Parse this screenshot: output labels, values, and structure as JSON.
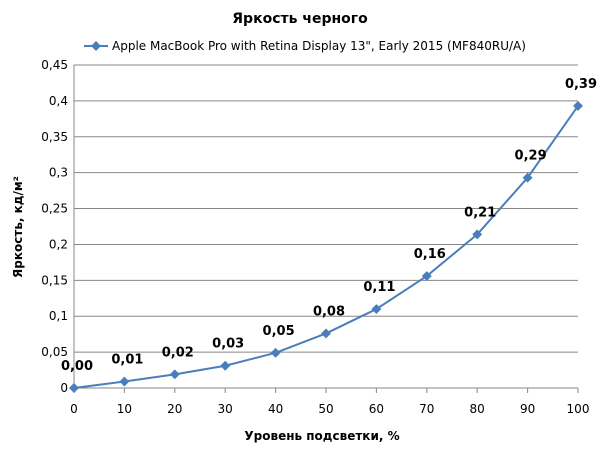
{
  "chart_data": {
    "type": "line",
    "title": "Яркость черного",
    "xlabel": "Уровень подсветки, %",
    "ylabel": "Яркость, кд/м²",
    "xlim": [
      0,
      100
    ],
    "ylim": [
      0,
      0.45
    ],
    "x_ticks": [
      "0",
      "10",
      "20",
      "30",
      "40",
      "50",
      "60",
      "70",
      "80",
      "90",
      "100"
    ],
    "y_ticks": [
      "0",
      "0,05",
      "0,1",
      "0,15",
      "0,2",
      "0,25",
      "0,3",
      "0,35",
      "0,4",
      "0,45"
    ],
    "grid": "horizontal",
    "legend_position": "top",
    "series": [
      {
        "name": "Apple MacBook Pro with Retina Display 13\", Early 2015 (MF840RU/A)",
        "color": "#4a7ebb",
        "x": [
          0,
          10,
          20,
          30,
          40,
          50,
          60,
          70,
          80,
          90,
          100
        ],
        "values": [
          0.0,
          0.009,
          0.019,
          0.031,
          0.049,
          0.076,
          0.11,
          0.156,
          0.214,
          0.293,
          0.393
        ],
        "labels": [
          "0,00",
          "0,01",
          "0,02",
          "0,03",
          "0,05",
          "0,08",
          "0,11",
          "0,16",
          "0,21",
          "0,29",
          "0,39"
        ]
      }
    ]
  }
}
